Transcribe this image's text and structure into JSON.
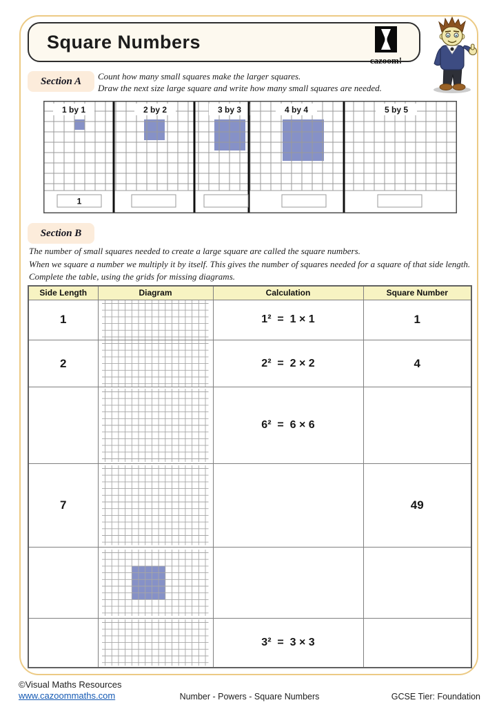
{
  "page": {
    "title": "Square Numbers",
    "logo_text": "cazoom!"
  },
  "colors": {
    "shaded_blue": "#8691c7",
    "grid_gray": "#9a9a9a",
    "diagram_gray": "#a6a6a6",
    "header_yellow": "#f7f3c2",
    "frame_gold": "#ecca84",
    "pill_peach": "#fcecdb",
    "link_blue": "#1459b3"
  },
  "section_a": {
    "label": "Section A",
    "instruction_line1": "Count how many small squares make the larger squares.",
    "instruction_line2": "Draw the next size large square and write how many small squares are needed.",
    "panels": [
      {
        "label": "1 by 1",
        "shaded_size": 1,
        "answer": "1"
      },
      {
        "label": "2 by 2",
        "shaded_size": 2,
        "answer": ""
      },
      {
        "label": "3 by 3",
        "shaded_size": 3,
        "answer": ""
      },
      {
        "label": "4 by 4",
        "shaded_size": 4,
        "answer": ""
      },
      {
        "label": "5 by 5",
        "shaded_size": 0,
        "answer": ""
      }
    ]
  },
  "section_b": {
    "label": "Section B",
    "intro1": "The number of small squares needed to create a large square are called the square numbers.",
    "intro2": "When we square a number we multiply it by itself. This gives the number of squares needed for a square of that side length. Complete the table, using the grids for missing diagrams.",
    "table": {
      "headers": [
        "Side Length",
        "Diagram",
        "Calculation",
        "Square Number"
      ],
      "rows": [
        {
          "side": "1",
          "calc": "1²  =  1 × 1",
          "square": "1",
          "diagram": null
        },
        {
          "side": "2",
          "calc": "2²  =  2 × 2",
          "square": "4",
          "diagram": null
        },
        {
          "side": "",
          "calc": "6²  =  6 × 6",
          "square": "",
          "diagram": null
        },
        {
          "side": "7",
          "calc": "",
          "square": "49",
          "diagram": null
        },
        {
          "side": "",
          "calc": "",
          "square": "",
          "diagram": {
            "col": 4,
            "row": 2,
            "size": 5
          }
        },
        {
          "side": "",
          "calc": "3²  =  3 × 3",
          "square": "",
          "diagram": null
        }
      ]
    }
  },
  "footer": {
    "copyright": "©Visual Maths Resources",
    "website": "www.cazoommaths.com",
    "center": "Number - Powers - Square Numbers",
    "right": "GCSE Tier: Foundation"
  }
}
